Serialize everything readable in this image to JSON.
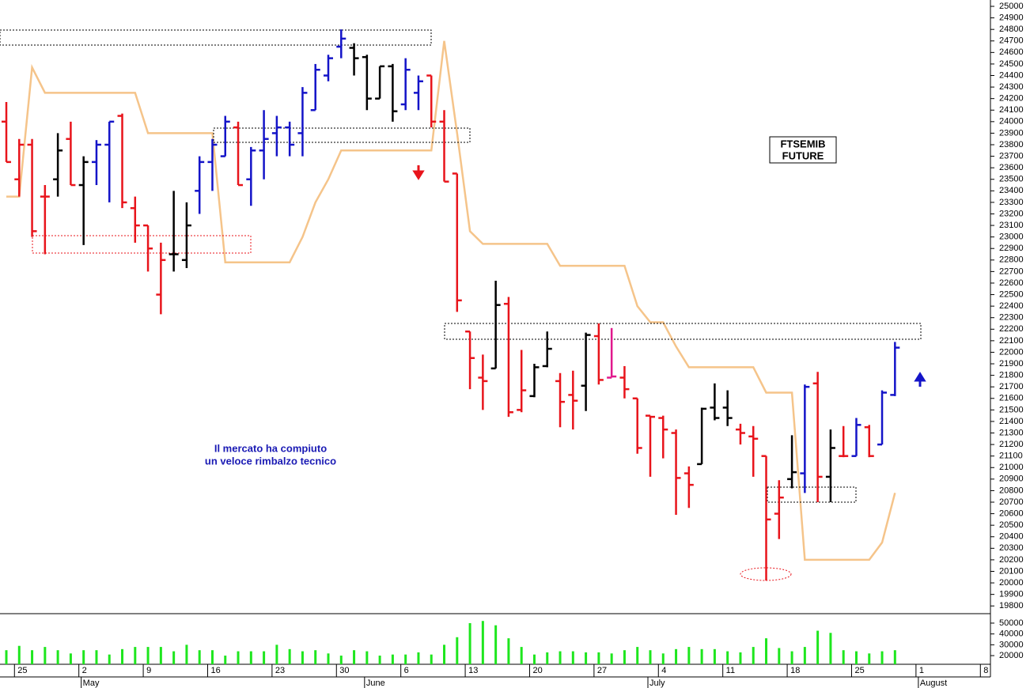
{
  "chart_data": {
    "type": "ohlc",
    "annotations": [
      "FTSEMIB",
      "FUTURE",
      "Il mercato ha compiuto",
      "un veloce rimbalzo tecnico"
    ],
    "categories": [
      null,
      "25",
      null,
      null,
      null,
      null,
      "2",
      null,
      null,
      null,
      null,
      "9",
      null,
      null,
      null,
      null,
      "16",
      null,
      null,
      null,
      null,
      "23",
      null,
      null,
      null,
      null,
      "30",
      null,
      null,
      null,
      null,
      "6",
      null,
      null,
      null,
      null,
      "13",
      null,
      null,
      null,
      null,
      "20",
      null,
      null,
      null,
      null,
      "27",
      null,
      null,
      null,
      null,
      "4",
      null,
      null,
      null,
      null,
      "11",
      null,
      null,
      null,
      null,
      "18",
      null,
      null,
      null,
      null,
      "25",
      null,
      null,
      null,
      null,
      "1",
      null,
      null,
      null,
      null,
      "8"
    ],
    "month_labels": [
      {
        "label": "May",
        "index": 6
      },
      {
        "label": "June",
        "index": 28
      },
      {
        "label": "July",
        "index": 50
      },
      {
        "label": "August",
        "index": 71
      }
    ],
    "open": [
      24000,
      23500,
      23800,
      23350,
      23500,
      23850,
      23450,
      23650,
      23800,
      24050,
      23250,
      23100,
      22500,
      22850,
      22800,
      23400,
      23650,
      23700,
      23950,
      23500,
      23750,
      23900,
      23950,
      23900,
      24100,
      24400,
      24650,
      24640,
      24560,
      24200,
      24480,
      24150,
      24250,
      24400,
      24000,
      23550,
      22180,
      21780,
      21860,
      22420,
      21500,
      21620,
      21880,
      21750,
      21630,
      21710,
      22140,
      21780,
      21780,
      21600,
      21450,
      21430,
      21300,
      20950,
      21030,
      21520,
      21520,
      21330,
      21270,
      21100,
      20600,
      20900,
      20950,
      21730,
      20920,
      21100,
      21100,
      21350,
      21200,
      21630,
      null,
      null,
      null,
      null,
      null,
      null,
      null
    ],
    "high": [
      24170,
      23850,
      23850,
      23450,
      23900,
      24000,
      23700,
      23840,
      24000,
      24070,
      23350,
      23100,
      22950,
      23400,
      23300,
      23700,
      23850,
      24050,
      24000,
      23780,
      24100,
      24050,
      24000,
      24300,
      24500,
      24580,
      24800,
      24680,
      24580,
      24480,
      24500,
      24550,
      24400,
      24400,
      24100,
      23550,
      22180,
      21980,
      22620,
      22480,
      22020,
      21900,
      22180,
      21820,
      21840,
      22170,
      22250,
      22210,
      21880,
      21600,
      21450,
      21450,
      21330,
      21010,
      21520,
      21730,
      21670,
      21380,
      21360,
      21100,
      20890,
      21280,
      21720,
      21830,
      21330,
      21360,
      21430,
      21370,
      21670,
      22090,
      null,
      null,
      null,
      null,
      null,
      null,
      null
    ],
    "low": [
      23650,
      23350,
      23000,
      22850,
      23350,
      23450,
      22930,
      23450,
      23300,
      23250,
      22950,
      22700,
      22330,
      22700,
      22730,
      23200,
      23400,
      23700,
      23450,
      23270,
      23500,
      23700,
      23700,
      23700,
      24100,
      24350,
      24550,
      24400,
      24100,
      24200,
      24000,
      24100,
      24100,
      23950,
      23480,
      22350,
      21680,
      21500,
      21860,
      21440,
      21480,
      21610,
      21870,
      21350,
      21330,
      21490,
      21720,
      21780,
      21600,
      21120,
      20920,
      21080,
      20590,
      20650,
      21030,
      21410,
      21360,
      21200,
      20920,
      20020,
      20380,
      20820,
      20780,
      20700,
      20700,
      21090,
      21100,
      21090,
      21200,
      21620,
      null,
      null,
      null,
      null,
      null,
      null,
      null
    ],
    "close": [
      23650,
      23800,
      23050,
      23350,
      23750,
      23450,
      23650,
      23800,
      24000,
      23300,
      23100,
      22900,
      22800,
      22850,
      23100,
      23650,
      23800,
      24000,
      23450,
      23750,
      23850,
      23950,
      23800,
      24250,
      24450,
      24550,
      24720,
      24550,
      24200,
      24480,
      24090,
      24450,
      24350,
      24000,
      23480,
      22450,
      21950,
      21750,
      22410,
      21480,
      21670,
      21870,
      22030,
      21570,
      21580,
      22150,
      21760,
      21790,
      21680,
      21170,
      21440,
      21330,
      20910,
      20850,
      21510,
      21430,
      21430,
      21300,
      21250,
      20550,
      20740,
      20960,
      21700,
      20920,
      21170,
      21100,
      21370,
      21100,
      21650,
      22040,
      null,
      null,
      null,
      null,
      null,
      null,
      null
    ],
    "palette": {
      "r": "#e8141b",
      "b": "#1414c8",
      "k": "#000000",
      "m": "#e0198c"
    },
    "bar_colors": [
      "r",
      "r",
      "r",
      "r",
      "k",
      "r",
      "k",
      "b",
      "b",
      "r",
      "r",
      "r",
      "r",
      "k",
      "k",
      "b",
      "b",
      "b",
      "r",
      "b",
      "b",
      "b",
      "b",
      "b",
      "b",
      "b",
      "b",
      "k",
      "k",
      "k",
      "k",
      "b",
      "b",
      "r",
      "r",
      "r",
      "r",
      "r",
      "k",
      "r",
      "r",
      "k",
      "k",
      "r",
      "r",
      "k",
      "r",
      "m",
      "r",
      "r",
      "r",
      "r",
      "r",
      "r",
      "k",
      "k",
      "k",
      "r",
      "r",
      "r",
      "r",
      "k",
      "b",
      "r",
      "k",
      "r",
      "b",
      "r",
      "b",
      "b",
      null,
      null,
      null,
      null,
      null,
      null,
      null
    ],
    "overlay": {
      "color": "#f5c48a",
      "values": [
        23350,
        23350,
        24470,
        24250,
        24250,
        24250,
        24250,
        24250,
        24250,
        24250,
        24250,
        23900,
        23900,
        23900,
        23900,
        23900,
        23900,
        22780,
        22780,
        22780,
        22780,
        22780,
        22780,
        23000,
        23300,
        23500,
        23750,
        23750,
        23750,
        23750,
        23750,
        23750,
        23750,
        23750,
        24700,
        23900,
        23050,
        22940,
        22940,
        22940,
        22940,
        22940,
        22940,
        22750,
        22750,
        22750,
        22750,
        22750,
        22750,
        22400,
        22260,
        22260,
        22050,
        21870,
        21870,
        21870,
        21870,
        21870,
        21870,
        21650,
        21650,
        21650,
        20200,
        20200,
        20200,
        20200,
        20200,
        20200,
        20350,
        20780,
        null,
        null,
        null,
        null,
        null,
        null,
        null
      ]
    },
    "ylim": [
      19733,
      25055
    ],
    "yticks": [
      19800,
      19900,
      20000,
      20100,
      20200,
      20300,
      20400,
      20500,
      20600,
      20700,
      20800,
      20900,
      21000,
      21100,
      21200,
      21300,
      21400,
      21500,
      21600,
      21700,
      21800,
      21900,
      22000,
      22100,
      22200,
      22300,
      22400,
      22500,
      22600,
      22700,
      22800,
      22900,
      23000,
      23100,
      23200,
      23300,
      23400,
      23500,
      23600,
      23700,
      23800,
      23900,
      24000,
      24100,
      24200,
      24300,
      24400,
      24500,
      24600,
      24700,
      24800,
      24900,
      25000
    ],
    "volume": {
      "color": "#1ee61e",
      "ylim": [
        12000,
        58000
      ],
      "yticks": [
        20000,
        30000,
        40000,
        50000
      ],
      "values": [
        25000,
        29000,
        25000,
        28000,
        25000,
        22000,
        25000,
        25000,
        21000,
        26000,
        28000,
        28000,
        28000,
        24000,
        30000,
        25000,
        25000,
        20000,
        24000,
        24000,
        24000,
        30000,
        26000,
        24000,
        25000,
        22000,
        20000,
        25000,
        24000,
        20000,
        21000,
        21000,
        23000,
        21000,
        30000,
        37000,
        50000,
        52000,
        48000,
        36000,
        28000,
        21000,
        23000,
        24000,
        24000,
        23000,
        23000,
        22000,
        25000,
        28000,
        25000,
        22000,
        26000,
        28000,
        26000,
        26000,
        24000,
        23000,
        28000,
        36000,
        27000,
        24000,
        28000,
        43000,
        41000,
        25000,
        24000,
        22000,
        24000,
        25000,
        null,
        null,
        null,
        null,
        null,
        null,
        null
      ]
    }
  }
}
